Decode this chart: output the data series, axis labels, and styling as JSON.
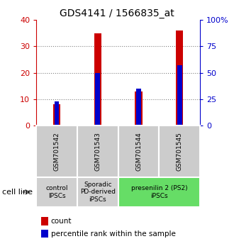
{
  "title": "GDS4141 / 1566835_at",
  "samples": [
    "GSM701542",
    "GSM701543",
    "GSM701544",
    "GSM701545"
  ],
  "counts": [
    8,
    35,
    13,
    36
  ],
  "percentiles": [
    23,
    50,
    35,
    57
  ],
  "left_ylim": [
    0,
    40
  ],
  "right_ylim": [
    0,
    100
  ],
  "left_yticks": [
    0,
    10,
    20,
    30,
    40
  ],
  "right_yticks": [
    0,
    25,
    50,
    75,
    100
  ],
  "right_yticklabels": [
    "0",
    "25",
    "50",
    "75",
    "100%"
  ],
  "left_color": "#cc0000",
  "right_color": "#0000cc",
  "red_bar_width": 0.18,
  "blue_bar_width": 0.12,
  "groups": [
    {
      "label": "control\nIPSCs",
      "start": 0,
      "end": 1,
      "color": "#d0d0d0"
    },
    {
      "label": "Sporadic\nPD-derived\niPSCs",
      "start": 1,
      "end": 2,
      "color": "#d0d0d0"
    },
    {
      "label": "presenilin 2 (PS2)\niPSCs",
      "start": 2,
      "end": 4,
      "color": "#66dd66"
    }
  ],
  "cell_line_label": "cell line",
  "legend_count_label": "count",
  "legend_percentile_label": "percentile rank within the sample",
  "title_fontsize": 10,
  "tick_fontsize": 8,
  "sample_fontsize": 6.5,
  "group_fontsize": 6.5,
  "legend_fontsize": 7.5
}
